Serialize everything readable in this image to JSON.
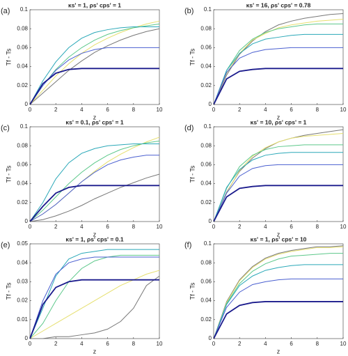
{
  "chart_data": [
    {
      "type": "line",
      "label": "(a)",
      "title": "κs' = 1,  ρs' cps' = 1",
      "x_label": "z",
      "y_label": "Tf - Ts",
      "x": [
        0,
        1,
        2,
        3,
        4,
        5,
        6,
        7,
        8,
        9,
        10
      ],
      "xlim": [
        0,
        10
      ],
      "xticks": [
        0,
        2,
        4,
        6,
        8,
        10
      ],
      "ylim": [
        0,
        0.1
      ],
      "yticks": [
        0,
        0.02,
        0.04,
        0.06,
        0.08,
        0.1
      ],
      "series": [
        {
          "color": "#777777",
          "values": [
            0,
            0.012,
            0.024,
            0.036,
            0.046,
            0.055,
            0.062,
            0.068,
            0.073,
            0.077,
            0.08
          ]
        },
        {
          "color": "#e6df6e",
          "values": [
            0,
            0.015,
            0.03,
            0.043,
            0.054,
            0.063,
            0.07,
            0.076,
            0.081,
            0.085,
            0.088
          ]
        },
        {
          "color": "#5cc88a",
          "values": [
            0,
            0.02,
            0.037,
            0.05,
            0.06,
            0.068,
            0.074,
            0.078,
            0.081,
            0.083,
            0.085
          ]
        },
        {
          "color": "#2aa8b8",
          "values": [
            0,
            0.025,
            0.045,
            0.06,
            0.07,
            0.076,
            0.079,
            0.081,
            0.082,
            0.082,
            0.082
          ]
        },
        {
          "color": "#4a5fd0",
          "values": [
            0,
            0.02,
            0.036,
            0.047,
            0.054,
            0.058,
            0.06,
            0.06,
            0.06,
            0.06,
            0.06
          ]
        },
        {
          "color": "#1a1a8c",
          "values": [
            0,
            0.022,
            0.033,
            0.037,
            0.038,
            0.038,
            0.038,
            0.038,
            0.038,
            0.038,
            0.038
          ]
        }
      ]
    },
    {
      "type": "line",
      "label": "(b)",
      "title": "κs' = 16,  ρs' cps' = 0.78",
      "x_label": "z",
      "y_label": "Tf - Ts",
      "x": [
        0,
        1,
        2,
        3,
        4,
        5,
        6,
        7,
        8,
        9,
        10
      ],
      "xlim": [
        0,
        10
      ],
      "xticks": [
        0,
        2,
        4,
        6,
        8,
        10
      ],
      "ylim": [
        0,
        0.1
      ],
      "yticks": [
        0,
        0.02,
        0.04,
        0.06,
        0.08,
        0.1
      ],
      "series": [
        {
          "color": "#777777",
          "values": [
            0,
            0.031,
            0.053,
            0.067,
            0.077,
            0.084,
            0.088,
            0.091,
            0.093,
            0.095,
            0.096
          ]
        },
        {
          "color": "#e6df6e",
          "values": [
            0,
            0.033,
            0.054,
            0.068,
            0.075,
            0.081,
            0.084,
            0.086,
            0.088,
            0.089,
            0.09
          ]
        },
        {
          "color": "#5cc88a",
          "values": [
            0,
            0.036,
            0.057,
            0.069,
            0.076,
            0.08,
            0.082,
            0.084,
            0.085,
            0.085,
            0.085
          ]
        },
        {
          "color": "#2aa8b8",
          "values": [
            0,
            0.036,
            0.054,
            0.064,
            0.069,
            0.071,
            0.073,
            0.074,
            0.074,
            0.074,
            0.074
          ]
        },
        {
          "color": "#4a5fd0",
          "values": [
            0,
            0.034,
            0.049,
            0.055,
            0.058,
            0.059,
            0.06,
            0.06,
            0.06,
            0.06,
            0.06
          ]
        },
        {
          "color": "#1a1a8c",
          "values": [
            0,
            0.027,
            0.035,
            0.037,
            0.038,
            0.038,
            0.038,
            0.038,
            0.038,
            0.038,
            0.038
          ]
        }
      ]
    },
    {
      "type": "line",
      "label": "(c)",
      "title": "κs' = 0.1,  ρs' cps' = 1",
      "x_label": "z",
      "y_label": "Tf - Ts",
      "x": [
        0,
        1,
        2,
        3,
        4,
        5,
        6,
        7,
        8,
        9,
        10
      ],
      "xlim": [
        0,
        10
      ],
      "xticks": [
        0,
        2,
        4,
        6,
        8,
        10
      ],
      "ylim": [
        0,
        0.1
      ],
      "yticks": [
        0,
        0.02,
        0.04,
        0.06,
        0.08,
        0.1
      ],
      "series": [
        {
          "color": "#777777",
          "values": [
            0,
            0.002,
            0.006,
            0.011,
            0.017,
            0.024,
            0.03,
            0.036,
            0.041,
            0.046,
            0.05
          ]
        },
        {
          "color": "#e6df6e",
          "values": [
            0,
            0.008,
            0.018,
            0.03,
            0.042,
            0.053,
            0.063,
            0.071,
            0.078,
            0.084,
            0.089
          ]
        },
        {
          "color": "#5cc88a",
          "values": [
            0,
            0.012,
            0.026,
            0.04,
            0.052,
            0.062,
            0.07,
            0.076,
            0.08,
            0.083,
            0.085
          ]
        },
        {
          "color": "#4a5fd0",
          "values": [
            0,
            0.008,
            0.018,
            0.03,
            0.042,
            0.052,
            0.06,
            0.065,
            0.068,
            0.07,
            0.07
          ]
        },
        {
          "color": "#2aa8b8",
          "values": [
            0,
            0.02,
            0.045,
            0.062,
            0.072,
            0.077,
            0.08,
            0.081,
            0.082,
            0.082,
            0.082
          ]
        },
        {
          "color": "#1a1a8c",
          "values": [
            0,
            0.016,
            0.03,
            0.036,
            0.038,
            0.038,
            0.038,
            0.038,
            0.038,
            0.038,
            0.038
          ]
        }
      ]
    },
    {
      "type": "line",
      "label": "(d)",
      "title": "κs' = 10,  ρs' cps' = 1",
      "x_label": "z",
      "y_label": "Tf - Ts",
      "x": [
        0,
        1,
        2,
        3,
        4,
        5,
        6,
        7,
        8,
        9,
        10
      ],
      "xlim": [
        0,
        10
      ],
      "xticks": [
        0,
        2,
        4,
        6,
        8,
        10
      ],
      "ylim": [
        0,
        0.1
      ],
      "yticks": [
        0,
        0.02,
        0.04,
        0.06,
        0.08,
        0.1
      ],
      "series": [
        {
          "color": "#777777",
          "values": [
            0,
            0.031,
            0.053,
            0.067,
            0.077,
            0.084,
            0.088,
            0.091,
            0.093,
            0.095,
            0.097
          ]
        },
        {
          "color": "#e6df6e",
          "values": [
            0,
            0.03,
            0.054,
            0.069,
            0.078,
            0.084,
            0.088,
            0.09,
            0.091,
            0.092,
            0.093
          ]
        },
        {
          "color": "#5cc88a",
          "values": [
            0,
            0.035,
            0.058,
            0.07,
            0.076,
            0.079,
            0.08,
            0.081,
            0.081,
            0.081,
            0.081
          ]
        },
        {
          "color": "#2aa8b8",
          "values": [
            0,
            0.036,
            0.055,
            0.065,
            0.07,
            0.072,
            0.073,
            0.073,
            0.073,
            0.073,
            0.073
          ]
        },
        {
          "color": "#4a5fd0",
          "values": [
            0,
            0.03,
            0.048,
            0.056,
            0.059,
            0.06,
            0.06,
            0.06,
            0.06,
            0.06,
            0.06
          ]
        },
        {
          "color": "#1a1a8c",
          "values": [
            0,
            0.026,
            0.035,
            0.037,
            0.038,
            0.038,
            0.038,
            0.038,
            0.038,
            0.038,
            0.038
          ]
        }
      ]
    },
    {
      "type": "line",
      "label": "(e)",
      "title": "κs' = 1,  ρs' cps' = 0.1",
      "x_label": "z",
      "y_label": "Tf - Ts",
      "x": [
        0,
        1,
        2,
        3,
        4,
        5,
        6,
        7,
        8,
        9,
        10
      ],
      "xlim": [
        0,
        10
      ],
      "xticks": [
        0,
        2,
        4,
        6,
        8,
        10
      ],
      "ylim": [
        0,
        0.05
      ],
      "yticks": [
        0,
        0.01,
        0.02,
        0.03,
        0.04,
        0.05
      ],
      "series": [
        {
          "color": "#777777",
          "values": [
            0,
            0,
            0.001,
            0.001,
            0.002,
            0.003,
            0.005,
            0.009,
            0.016,
            0.028,
            0.033
          ]
        },
        {
          "color": "#e6df6e",
          "values": [
            0,
            0.004,
            0.008,
            0.012,
            0.016,
            0.02,
            0.024,
            0.028,
            0.031,
            0.034,
            0.036
          ]
        },
        {
          "color": "#5cc88a",
          "values": [
            0,
            0.008,
            0.02,
            0.03,
            0.037,
            0.041,
            0.043,
            0.044,
            0.044,
            0.044,
            0.044
          ]
        },
        {
          "color": "#2aa8b8",
          "values": [
            0,
            0.016,
            0.033,
            0.042,
            0.045,
            0.046,
            0.047,
            0.047,
            0.047,
            0.047,
            0.047
          ]
        },
        {
          "color": "#4a5fd0",
          "values": [
            0,
            0.02,
            0.034,
            0.04,
            0.042,
            0.043,
            0.043,
            0.043,
            0.043,
            0.043,
            0.043
          ]
        },
        {
          "color": "#1a1a8c",
          "values": [
            0,
            0.018,
            0.027,
            0.03,
            0.031,
            0.031,
            0.031,
            0.031,
            0.031,
            0.031,
            0.031
          ]
        }
      ]
    },
    {
      "type": "line",
      "label": "(f)",
      "title": "κs' = 1,  ρs' cps' = 10",
      "x_label": "z",
      "y_label": "Tf - Ts",
      "x": [
        0,
        1,
        2,
        3,
        4,
        5,
        6,
        7,
        8,
        9,
        10
      ],
      "xlim": [
        0,
        10
      ],
      "xticks": [
        0,
        2,
        4,
        6,
        8,
        10
      ],
      "ylim": [
        0,
        0.1
      ],
      "yticks": [
        0,
        0.02,
        0.04,
        0.06,
        0.08,
        0.1
      ],
      "series": [
        {
          "color": "#777777",
          "values": [
            0,
            0.039,
            0.062,
            0.076,
            0.085,
            0.09,
            0.093,
            0.095,
            0.097,
            0.097,
            0.098
          ]
        },
        {
          "color": "#e6df6e",
          "values": [
            0,
            0.038,
            0.061,
            0.075,
            0.084,
            0.089,
            0.092,
            0.094,
            0.096,
            0.096,
            0.097
          ]
        },
        {
          "color": "#5cc88a",
          "values": [
            0,
            0.037,
            0.058,
            0.071,
            0.079,
            0.084,
            0.087,
            0.088,
            0.089,
            0.09,
            0.09
          ]
        },
        {
          "color": "#2aa8b8",
          "values": [
            0,
            0.036,
            0.056,
            0.066,
            0.072,
            0.075,
            0.077,
            0.078,
            0.078,
            0.078,
            0.078
          ]
        },
        {
          "color": "#4a5fd0",
          "values": [
            0,
            0.033,
            0.049,
            0.057,
            0.06,
            0.062,
            0.063,
            0.063,
            0.063,
            0.063,
            0.063
          ]
        },
        {
          "color": "#1a1a8c",
          "values": [
            0,
            0.026,
            0.035,
            0.038,
            0.039,
            0.039,
            0.039,
            0.039,
            0.039,
            0.039,
            0.039
          ]
        }
      ]
    }
  ]
}
